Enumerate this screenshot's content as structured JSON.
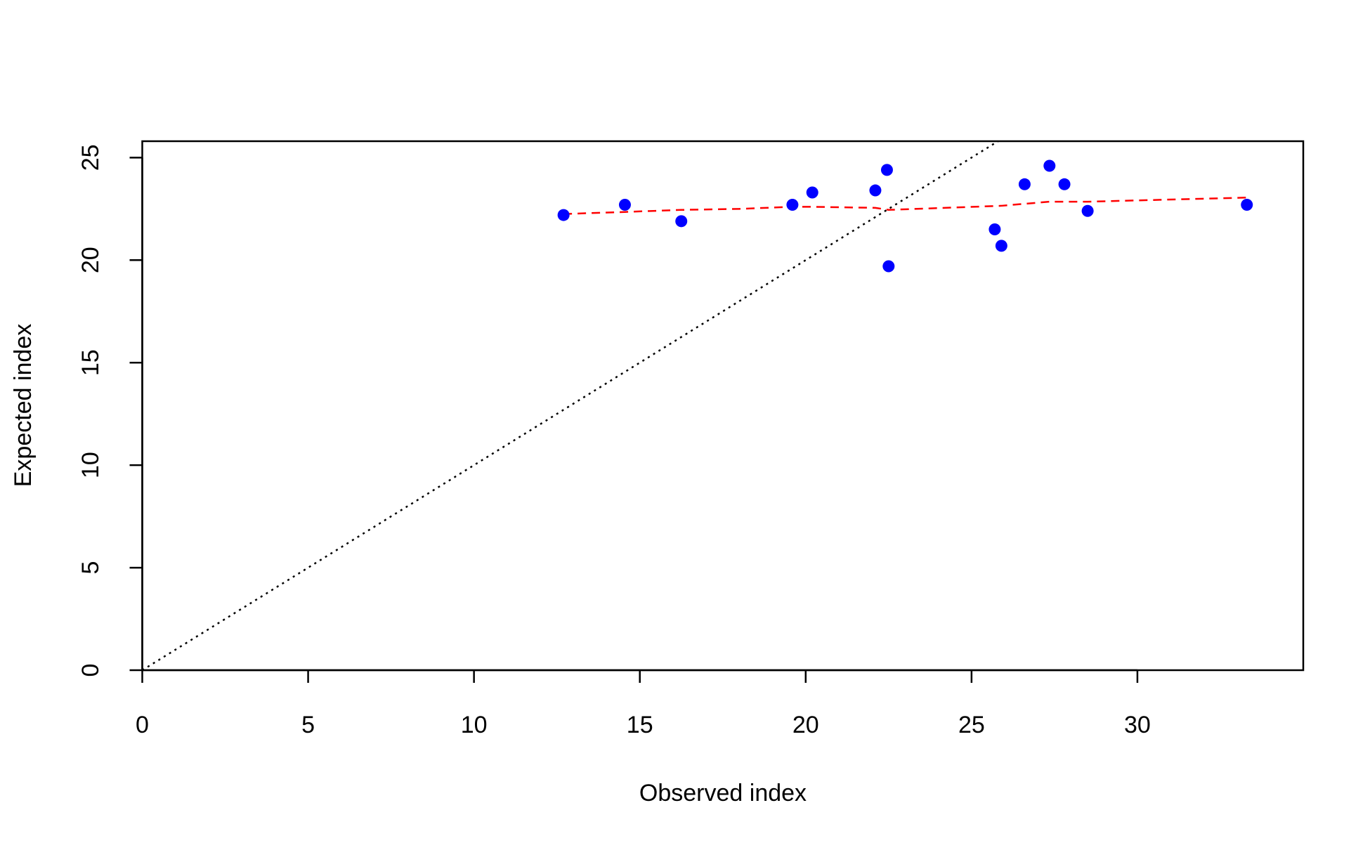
{
  "chart_data": {
    "type": "scatter",
    "xlabel": "Observed index",
    "ylabel": "Expected index",
    "xlim": [
      0,
      35
    ],
    "ylim": [
      0,
      25.8
    ],
    "xticks": [
      0,
      5,
      10,
      15,
      20,
      25,
      30
    ],
    "yticks": [
      0,
      5,
      10,
      15,
      20,
      25
    ],
    "points": {
      "color": "#0000ff",
      "x": [
        12.7,
        14.55,
        16.25,
        19.6,
        20.2,
        22.1,
        22.45,
        22.5,
        25.7,
        25.9,
        26.6,
        27.35,
        27.8,
        28.5,
        33.3
      ],
      "y": [
        22.2,
        22.7,
        21.9,
        22.7,
        23.3,
        23.4,
        24.4,
        19.7,
        21.5,
        20.7,
        23.7,
        24.6,
        23.7,
        22.4,
        22.7
      ]
    },
    "smooth": {
      "color": "#ff0000",
      "x": [
        12.7,
        14.55,
        16.25,
        18,
        19.6,
        20.2,
        22.1,
        22.5,
        25.9,
        27.35,
        28.5,
        33.3
      ],
      "y": [
        22.25,
        22.35,
        22.45,
        22.5,
        22.6,
        22.6,
        22.55,
        22.45,
        22.65,
        22.85,
        22.85,
        23.05
      ]
    }
  }
}
